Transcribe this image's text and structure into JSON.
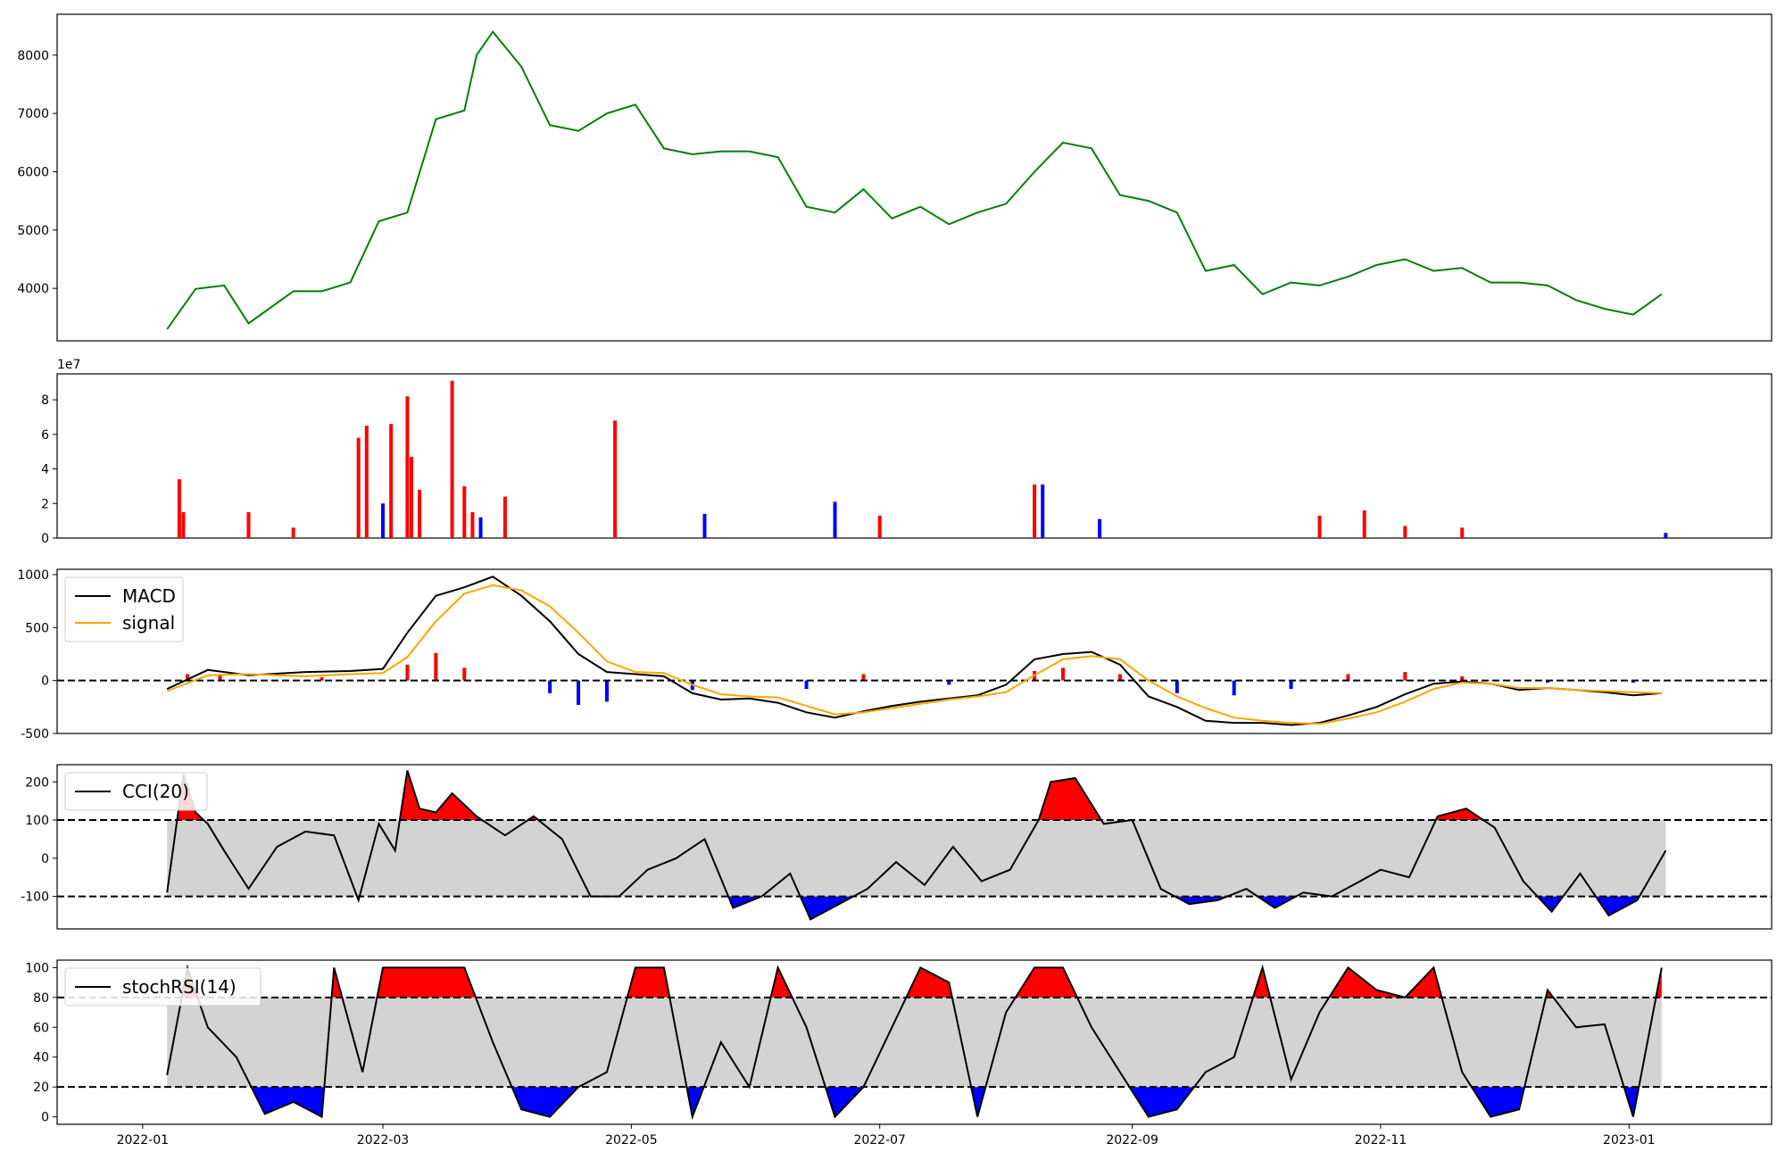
{
  "chart_data": [
    {
      "type": "line",
      "panel": "price",
      "color": "#008000",
      "ylim": [
        3100,
        8700
      ],
      "yticks": [
        4000,
        5000,
        6000,
        7000,
        8000
      ],
      "x": [
        "2022-01-07",
        "2022-01-14",
        "2022-01-21",
        "2022-01-27",
        "2022-02-07",
        "2022-02-14",
        "2022-02-21",
        "2022-02-28",
        "2022-03-07",
        "2022-03-14",
        "2022-03-21",
        "2022-03-24",
        "2022-03-28",
        "2022-04-04",
        "2022-04-11",
        "2022-04-18",
        "2022-04-25",
        "2022-05-02",
        "2022-05-09",
        "2022-05-16",
        "2022-05-23",
        "2022-05-30",
        "2022-06-06",
        "2022-06-13",
        "2022-06-20",
        "2022-06-27",
        "2022-07-04",
        "2022-07-11",
        "2022-07-18",
        "2022-07-25",
        "2022-08-01",
        "2022-08-08",
        "2022-08-15",
        "2022-08-22",
        "2022-08-29",
        "2022-09-05",
        "2022-09-12",
        "2022-09-19",
        "2022-09-26",
        "2022-10-03",
        "2022-10-10",
        "2022-10-17",
        "2022-10-24",
        "2022-10-31",
        "2022-11-07",
        "2022-11-14",
        "2022-11-21",
        "2022-11-28",
        "2022-12-05",
        "2022-12-12",
        "2022-12-19",
        "2022-12-26",
        "2023-01-02",
        "2023-01-09"
      ],
      "y": [
        3300,
        3990,
        4050,
        3400,
        3950,
        3950,
        4100,
        5150,
        5300,
        6900,
        7050,
        8000,
        8400,
        7800,
        6800,
        6700,
        7000,
        7150,
        6400,
        6300,
        6350,
        6350,
        6250,
        5400,
        5300,
        5700,
        5200,
        5400,
        5100,
        5300,
        5450,
        6000,
        6500,
        6400,
        5600,
        5500,
        5300,
        4300,
        4400,
        3900,
        4100,
        4050,
        4200,
        4400,
        4500,
        4300,
        4350,
        4100,
        4100,
        4050,
        3800,
        3650,
        3550,
        3900
      ]
    },
    {
      "type": "bar",
      "panel": "volume",
      "ylim": [
        0,
        95000000
      ],
      "yticks": [
        0,
        20000000,
        40000000,
        60000000,
        80000000
      ],
      "ytick_labels": [
        "0",
        "2",
        "4",
        "6",
        "8"
      ],
      "offset_text": "1e7",
      "x": [
        "2022-01-10",
        "2022-01-11",
        "2022-01-27",
        "2022-02-07",
        "2022-02-23",
        "2022-02-25",
        "2022-03-01",
        "2022-03-03",
        "2022-03-07",
        "2022-03-08",
        "2022-03-10",
        "2022-03-18",
        "2022-03-21",
        "2022-03-23",
        "2022-03-25",
        "2022-03-31",
        "2022-04-27",
        "2022-05-19",
        "2022-06-20",
        "2022-07-01",
        "2022-08-08",
        "2022-08-10",
        "2022-08-24",
        "2022-10-17",
        "2022-10-28",
        "2022-11-07",
        "2022-11-21",
        "2023-01-10"
      ],
      "values": [
        34000000,
        15000000,
        15000000,
        6000000,
        58000000,
        65000000,
        20000000,
        66000000,
        82000000,
        47000000,
        28000000,
        91000000,
        30000000,
        15000000,
        12000000,
        24000000,
        68000000,
        14000000,
        21000000,
        13000000,
        31000000,
        31000000,
        11000000,
        13000000,
        16000000,
        7000000,
        6000000,
        3000000
      ],
      "colors": [
        "red",
        "red",
        "red",
        "red",
        "red",
        "red",
        "blue",
        "red",
        "red",
        "red",
        "red",
        "red",
        "red",
        "red",
        "blue",
        "red",
        "red",
        "blue",
        "blue",
        "red",
        "red",
        "blue",
        "blue",
        "red",
        "red",
        "red",
        "red",
        "blue"
      ]
    },
    {
      "type": "line",
      "panel": "macd",
      "ylim": [
        -500,
        1050
      ],
      "yticks": [
        -500,
        0,
        500,
        1000
      ],
      "hline": 0,
      "x": [
        "2022-01-07",
        "2022-01-17",
        "2022-01-27",
        "2022-02-10",
        "2022-02-21",
        "2022-03-01",
        "2022-03-07",
        "2022-03-14",
        "2022-03-21",
        "2022-03-28",
        "2022-04-04",
        "2022-04-11",
        "2022-04-18",
        "2022-04-25",
        "2022-05-02",
        "2022-05-09",
        "2022-05-16",
        "2022-05-23",
        "2022-05-30",
        "2022-06-06",
        "2022-06-13",
        "2022-06-20",
        "2022-06-27",
        "2022-07-04",
        "2022-07-11",
        "2022-07-18",
        "2022-07-25",
        "2022-08-01",
        "2022-08-08",
        "2022-08-15",
        "2022-08-22",
        "2022-08-29",
        "2022-09-05",
        "2022-09-12",
        "2022-09-19",
        "2022-09-26",
        "2022-10-03",
        "2022-10-10",
        "2022-10-17",
        "2022-10-24",
        "2022-10-31",
        "2022-11-07",
        "2022-11-14",
        "2022-11-21",
        "2022-11-28",
        "2022-12-05",
        "2022-12-12",
        "2022-12-19",
        "2022-12-26",
        "2023-01-02",
        "2023-01-09"
      ],
      "series": [
        {
          "name": "MACD",
          "color": "#000000",
          "values": [
            -80,
            100,
            50,
            80,
            90,
            110,
            450,
            800,
            880,
            980,
            800,
            560,
            250,
            80,
            60,
            40,
            -120,
            -180,
            -170,
            -210,
            -300,
            -350,
            -290,
            -240,
            -200,
            -170,
            -140,
            -40,
            200,
            250,
            270,
            150,
            -150,
            -250,
            -380,
            -400,
            -400,
            -420,
            -400,
            -330,
            -250,
            -130,
            -30,
            -10,
            -30,
            -90,
            -70,
            -90,
            -110,
            -140,
            -120
          ]
        },
        {
          "name": "signal",
          "color": "#FFA500",
          "values": [
            -100,
            50,
            60,
            40,
            60,
            70,
            220,
            560,
            820,
            900,
            850,
            700,
            450,
            180,
            80,
            70,
            -40,
            -130,
            -150,
            -160,
            -240,
            -320,
            -300,
            -260,
            -220,
            -180,
            -150,
            -110,
            50,
            200,
            230,
            200,
            0,
            -150,
            -260,
            -350,
            -380,
            -400,
            -410,
            -360,
            -300,
            -200,
            -80,
            -20,
            -30,
            -70,
            -70,
            -90,
            -100,
            -110,
            -120
          ]
        }
      ],
      "histogram": {
        "x": [
          "2022-01-12",
          "2022-01-20",
          "2022-02-14",
          "2022-03-07",
          "2022-03-14",
          "2022-03-21",
          "2022-04-11",
          "2022-04-18",
          "2022-04-25",
          "2022-05-16",
          "2022-06-13",
          "2022-06-27",
          "2022-07-18",
          "2022-08-08",
          "2022-08-15",
          "2022-08-29",
          "2022-09-12",
          "2022-09-26",
          "2022-10-10",
          "2022-10-24",
          "2022-11-07",
          "2022-11-21",
          "2022-12-12",
          "2023-01-02"
        ],
        "values": [
          60,
          50,
          30,
          150,
          260,
          120,
          -120,
          -230,
          -200,
          -90,
          -80,
          60,
          -40,
          90,
          120,
          60,
          -120,
          -140,
          -80,
          60,
          80,
          40,
          -20,
          -20
        ]
      }
    },
    {
      "type": "line",
      "panel": "cci",
      "ylim": [
        -185,
        245
      ],
      "yticks": [
        -100,
        0,
        100,
        200
      ],
      "band": [
        -100,
        100
      ],
      "series": [
        {
          "name": "CCI(20)",
          "color": "#000000"
        }
      ],
      "x": [
        "2022-01-07",
        "2022-01-11",
        "2022-01-14",
        "2022-01-17",
        "2022-01-21",
        "2022-01-27",
        "2022-02-03",
        "2022-02-10",
        "2022-02-17",
        "2022-02-23",
        "2022-02-28",
        "2022-03-04",
        "2022-03-07",
        "2022-03-10",
        "2022-03-14",
        "2022-03-18",
        "2022-03-24",
        "2022-03-31",
        "2022-04-07",
        "2022-04-14",
        "2022-04-21",
        "2022-04-28",
        "2022-05-05",
        "2022-05-12",
        "2022-05-19",
        "2022-05-26",
        "2022-06-02",
        "2022-06-09",
        "2022-06-14",
        "2022-06-21",
        "2022-06-28",
        "2022-07-05",
        "2022-07-12",
        "2022-07-19",
        "2022-07-26",
        "2022-08-02",
        "2022-08-09",
        "2022-08-12",
        "2022-08-18",
        "2022-08-25",
        "2022-09-01",
        "2022-09-08",
        "2022-09-15",
        "2022-09-22",
        "2022-09-29",
        "2022-10-06",
        "2022-10-13",
        "2022-10-20",
        "2022-10-27",
        "2022-11-01",
        "2022-11-08",
        "2022-11-15",
        "2022-11-22",
        "2022-11-29",
        "2022-12-06",
        "2022-12-13",
        "2022-12-20",
        "2022-12-27",
        "2023-01-03",
        "2023-01-10"
      ],
      "y": [
        -90,
        220,
        120,
        90,
        20,
        -80,
        30,
        70,
        60,
        -110,
        90,
        20,
        230,
        130,
        120,
        170,
        110,
        60,
        110,
        50,
        -100,
        -100,
        -30,
        0,
        50,
        -130,
        -100,
        -40,
        -160,
        -120,
        -80,
        -10,
        -70,
        30,
        -60,
        -30,
        100,
        200,
        210,
        90,
        100,
        -80,
        -120,
        -110,
        -80,
        -130,
        -90,
        -100,
        -60,
        -30,
        -50,
        110,
        130,
        80,
        -60,
        -140,
        -40,
        -150,
        -110,
        20
      ]
    },
    {
      "type": "line",
      "panel": "stochrsi",
      "ylim": [
        -5,
        105
      ],
      "yticks": [
        0,
        20,
        40,
        60,
        80,
        100
      ],
      "band": [
        20,
        80
      ],
      "series": [
        {
          "name": "stochRSI(14)",
          "color": "#000000"
        }
      ],
      "x": [
        "2022-01-07",
        "2022-01-12",
        "2022-01-17",
        "2022-01-24",
        "2022-01-31",
        "2022-02-07",
        "2022-02-14",
        "2022-02-17",
        "2022-02-21",
        "2022-02-24",
        "2022-03-01",
        "2022-03-07",
        "2022-03-14",
        "2022-03-21",
        "2022-03-28",
        "2022-04-04",
        "2022-04-11",
        "2022-04-18",
        "2022-04-25",
        "2022-05-02",
        "2022-05-09",
        "2022-05-16",
        "2022-05-23",
        "2022-05-30",
        "2022-06-06",
        "2022-06-13",
        "2022-06-20",
        "2022-06-27",
        "2022-07-04",
        "2022-07-11",
        "2022-07-18",
        "2022-07-25",
        "2022-08-01",
        "2022-08-08",
        "2022-08-15",
        "2022-08-22",
        "2022-08-29",
        "2022-09-05",
        "2022-09-12",
        "2022-09-19",
        "2022-09-26",
        "2022-10-03",
        "2022-10-10",
        "2022-10-17",
        "2022-10-24",
        "2022-10-31",
        "2022-11-07",
        "2022-11-14",
        "2022-11-21",
        "2022-11-28",
        "2022-12-05",
        "2022-12-12",
        "2022-12-19",
        "2022-12-26",
        "2023-01-02",
        "2023-01-09"
      ],
      "y": [
        28,
        100,
        60,
        40,
        2,
        10,
        0,
        100,
        60,
        30,
        100,
        100,
        100,
        100,
        50,
        5,
        0,
        20,
        30,
        100,
        100,
        0,
        50,
        20,
        100,
        60,
        0,
        20,
        60,
        100,
        90,
        0,
        70,
        100,
        100,
        60,
        30,
        0,
        5,
        30,
        40,
        100,
        25,
        70,
        100,
        85,
        80,
        100,
        30,
        0,
        5,
        85,
        60,
        62,
        0,
        100
      ]
    }
  ],
  "x_axis": {
    "ticks": [
      "2022-01",
      "2022-03",
      "2022-05",
      "2022-07",
      "2022-09",
      "2022-11",
      "2023-01"
    ]
  }
}
